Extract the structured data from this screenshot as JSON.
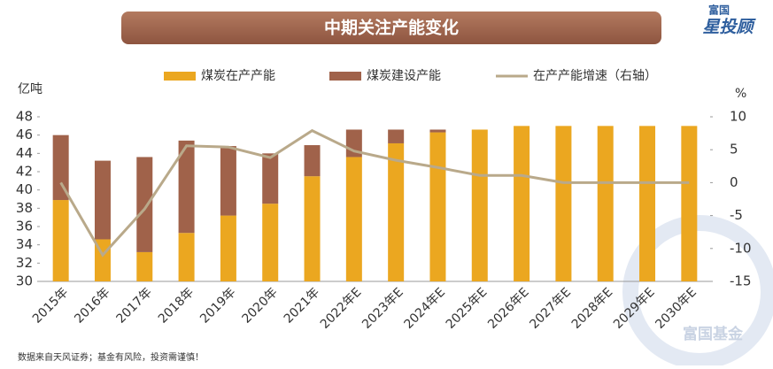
{
  "logo": [
    "富国",
    "星投顾"
  ],
  "footnote": "数据来自天风证券；基金有风险，投资需谨慎！",
  "watermark": "富国基金",
  "chart_data": {
    "type": "bar",
    "title": "中期关注产能变化",
    "ylabel": "亿吨",
    "y2label": "%",
    "categories": [
      "2015年",
      "2016年",
      "2017年",
      "2018年",
      "2019年",
      "2020年",
      "2021年",
      "2022年E",
      "2023年E",
      "2024年E",
      "2025年E",
      "2026年E",
      "2027年E",
      "2028年E",
      "2029年E",
      "2030年E"
    ],
    "series": [
      {
        "name": "煤炭在产产能",
        "color": "#eba720",
        "values": [
          38.9,
          34.6,
          33.2,
          35.3,
          37.2,
          38.5,
          41.5,
          43.6,
          45.1,
          46.3,
          46.6,
          47.0,
          47.0,
          47.0,
          47.0,
          47.0
        ]
      },
      {
        "name": "煤炭建设产能",
        "color": "#a0624a",
        "values": [
          7.1,
          8.6,
          10.4,
          10.1,
          7.6,
          5.5,
          3.4,
          3.0,
          1.5,
          0.3,
          0,
          0,
          0,
          0,
          0,
          0
        ]
      },
      {
        "name": "在产产能增速（右轴）",
        "color": "#b9a98a",
        "type": "line",
        "axis": "y2",
        "values": [
          0,
          -11,
          -4,
          5.6,
          5.4,
          3.8,
          7.9,
          4.8,
          3.4,
          2.3,
          1.1,
          1.1,
          0,
          0,
          0,
          0
        ]
      }
    ],
    "ylim": [
      30,
      48
    ],
    "yticks": [
      30,
      32,
      34,
      36,
      38,
      40,
      42,
      44,
      46,
      48
    ],
    "y2lim": [
      -15,
      10
    ],
    "y2ticks": [
      -15,
      -10,
      -5,
      0,
      5,
      10
    ],
    "grid": false
  }
}
